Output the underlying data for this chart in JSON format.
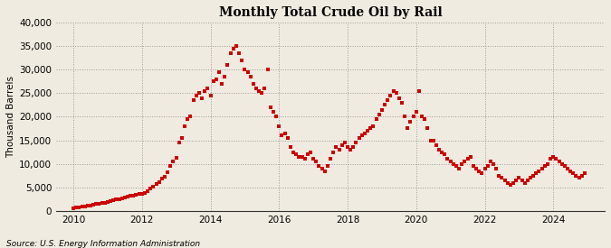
{
  "title": "Monthly Total Crude Oil by Rail",
  "ylabel": "Thousand Barrels",
  "source": "Source: U.S. Energy Information Administration",
  "background_color": "#f0ebe0",
  "plot_bg_color": "#f0ebe0",
  "dot_color": "#cc0000",
  "dot_size": 9,
  "ylim": [
    0,
    40000
  ],
  "yticks": [
    0,
    5000,
    10000,
    15000,
    20000,
    25000,
    30000,
    35000,
    40000
  ],
  "xticks": [
    2010,
    2012,
    2014,
    2016,
    2018,
    2020,
    2022,
    2024
  ],
  "xlim": [
    2009.5,
    2025.5
  ],
  "data": {
    "2010-01": 500,
    "2010-02": 700,
    "2010-03": 800,
    "2010-04": 900,
    "2010-05": 1000,
    "2010-06": 1100,
    "2010-07": 1200,
    "2010-08": 1400,
    "2010-09": 1500,
    "2010-10": 1600,
    "2010-11": 1700,
    "2010-12": 1800,
    "2011-01": 1900,
    "2011-02": 2000,
    "2011-03": 2200,
    "2011-04": 2400,
    "2011-05": 2500,
    "2011-06": 2700,
    "2011-07": 2900,
    "2011-08": 3100,
    "2011-09": 3200,
    "2011-10": 3300,
    "2011-11": 3500,
    "2011-12": 3600,
    "2012-01": 3700,
    "2012-02": 3900,
    "2012-03": 4200,
    "2012-04": 4700,
    "2012-05": 5200,
    "2012-06": 5700,
    "2012-07": 6200,
    "2012-08": 6800,
    "2012-09": 7300,
    "2012-10": 8200,
    "2012-11": 9500,
    "2012-12": 10500,
    "2013-01": 11200,
    "2013-02": 14500,
    "2013-03": 15500,
    "2013-04": 18000,
    "2013-05": 19500,
    "2013-06": 20000,
    "2013-07": 23500,
    "2013-08": 24500,
    "2013-09": 25000,
    "2013-10": 24000,
    "2013-11": 25500,
    "2013-12": 26000,
    "2014-01": 24500,
    "2014-02": 27500,
    "2014-03": 28000,
    "2014-04": 29500,
    "2014-05": 27000,
    "2014-06": 28500,
    "2014-07": 31000,
    "2014-08": 33500,
    "2014-09": 34500,
    "2014-10": 35000,
    "2014-11": 33500,
    "2014-12": 32000,
    "2015-01": 30000,
    "2015-02": 29500,
    "2015-03": 28500,
    "2015-04": 27000,
    "2015-05": 26000,
    "2015-06": 25500,
    "2015-07": 25000,
    "2015-08": 26000,
    "2015-09": 30000,
    "2015-10": 22000,
    "2015-11": 21000,
    "2015-12": 20000,
    "2016-01": 18000,
    "2016-02": 16000,
    "2016-03": 16500,
    "2016-04": 15500,
    "2016-05": 13500,
    "2016-06": 12500,
    "2016-07": 12000,
    "2016-08": 11500,
    "2016-09": 11500,
    "2016-10": 11000,
    "2016-11": 12000,
    "2016-12": 12500,
    "2017-01": 11000,
    "2017-02": 10500,
    "2017-03": 9500,
    "2017-04": 9000,
    "2017-05": 8500,
    "2017-06": 9500,
    "2017-07": 11000,
    "2017-08": 12500,
    "2017-09": 13500,
    "2017-10": 13000,
    "2017-11": 14000,
    "2017-12": 14500,
    "2018-01": 13500,
    "2018-02": 13000,
    "2018-03": 13500,
    "2018-04": 14500,
    "2018-05": 15500,
    "2018-06": 16000,
    "2018-07": 16500,
    "2018-08": 17000,
    "2018-09": 17500,
    "2018-10": 18000,
    "2018-11": 19500,
    "2018-12": 20500,
    "2019-01": 21500,
    "2019-02": 22500,
    "2019-03": 23500,
    "2019-04": 24500,
    "2019-05": 25500,
    "2019-06": 25000,
    "2019-07": 24000,
    "2019-08": 23000,
    "2019-09": 20000,
    "2019-10": 17500,
    "2019-11": 19000,
    "2019-12": 20000,
    "2020-01": 21000,
    "2020-02": 25500,
    "2020-03": 20000,
    "2020-04": 19500,
    "2020-05": 17500,
    "2020-06": 15000,
    "2020-07": 15000,
    "2020-08": 14000,
    "2020-09": 13000,
    "2020-10": 12500,
    "2020-11": 12000,
    "2020-12": 11000,
    "2021-01": 10500,
    "2021-02": 10000,
    "2021-03": 9500,
    "2021-04": 9000,
    "2021-05": 10000,
    "2021-06": 10500,
    "2021-07": 11000,
    "2021-08": 11500,
    "2021-09": 9500,
    "2021-10": 9000,
    "2021-11": 8500,
    "2021-12": 8000,
    "2022-01": 9000,
    "2022-02": 9500,
    "2022-03": 10500,
    "2022-04": 10000,
    "2022-05": 9000,
    "2022-06": 7500,
    "2022-07": 7000,
    "2022-08": 6500,
    "2022-09": 6000,
    "2022-10": 5500,
    "2022-11": 6000,
    "2022-12": 6500,
    "2023-01": 7000,
    "2023-02": 6500,
    "2023-03": 6000,
    "2023-04": 6500,
    "2023-05": 7000,
    "2023-06": 7500,
    "2023-07": 8000,
    "2023-08": 8500,
    "2023-09": 9000,
    "2023-10": 9500,
    "2023-11": 10000,
    "2023-12": 11000,
    "2024-01": 11500,
    "2024-02": 11000,
    "2024-03": 10500,
    "2024-04": 10000,
    "2024-05": 9500,
    "2024-06": 9000,
    "2024-07": 8500,
    "2024-08": 8000,
    "2024-09": 7500,
    "2024-10": 7000,
    "2024-11": 7500,
    "2024-12": 8000
  }
}
